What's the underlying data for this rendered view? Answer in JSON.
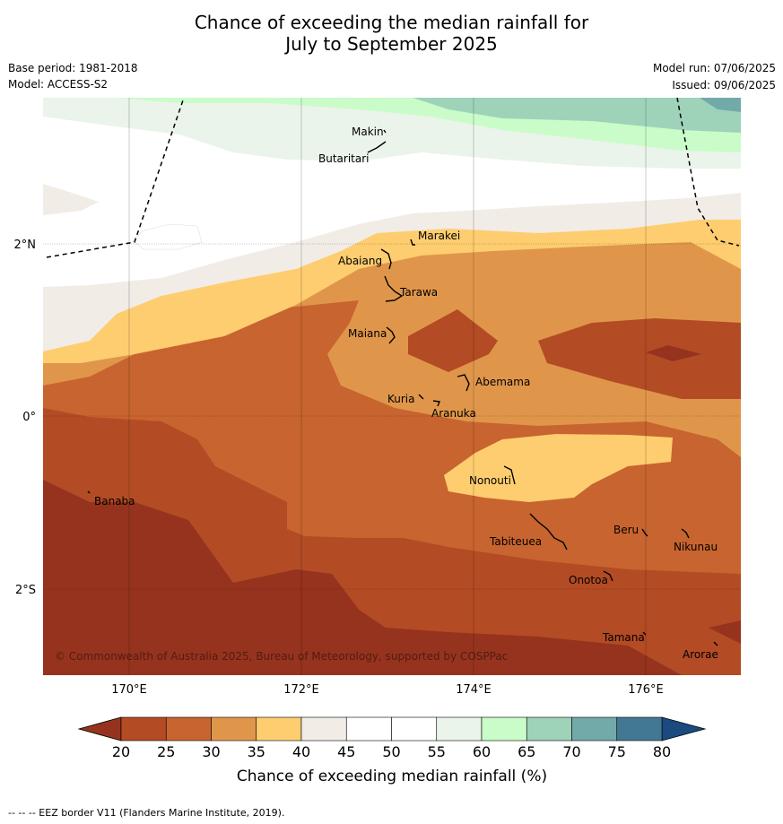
{
  "header": {
    "title_line1": "Chance of exceeding the median rainfall for",
    "title_line2": "July to September 2025",
    "base_period": "Base period: 1981-2018",
    "model": "Model: ACCESS-S2",
    "model_run": "Model run: 07/06/2025",
    "issued": "Issued: 09/06/2025"
  },
  "map": {
    "lat_labels": [
      "2°N",
      "0°",
      "2°S"
    ],
    "lon_labels": [
      "170°E",
      "172°E",
      "174°E",
      "176°E"
    ],
    "places": [
      {
        "name": "Makin"
      },
      {
        "name": "Butaritari"
      },
      {
        "name": "Marakei"
      },
      {
        "name": "Abaiang"
      },
      {
        "name": "Tarawa"
      },
      {
        "name": "Maiana"
      },
      {
        "name": "Abemama"
      },
      {
        "name": "Kuria"
      },
      {
        "name": "Aranuka"
      },
      {
        "name": "Nonouti"
      },
      {
        "name": "Banaba"
      },
      {
        "name": "Tabiteuea"
      },
      {
        "name": "Beru"
      },
      {
        "name": "Nikunau"
      },
      {
        "name": "Onotoa"
      },
      {
        "name": "Tamana"
      },
      {
        "name": "Arorae"
      }
    ],
    "copyright": "© Commonwealth of Australia 2025, Bureau of Meteorology, supported by COSPPac"
  },
  "colorbar": {
    "ticks": [
      "20",
      "25",
      "30",
      "35",
      "40",
      "45",
      "50",
      "55",
      "60",
      "65",
      "70",
      "75",
      "80"
    ],
    "colors": [
      "#b34b25",
      "#c8642f",
      "#e0964a",
      "#fdcd6f",
      "#f1ece6",
      "#ffffff",
      "#ffffff",
      "#eaf4ea",
      "#c9fcc9",
      "#9ed2b9",
      "#72a9a9",
      "#427894"
    ],
    "under_color": "#96331e",
    "over_color": "#1a4a80",
    "label": "Chance of exceeding median rainfall (%)"
  },
  "footer": "--  --  -- EEZ border V11 (Flanders Marine Institute, 2019)."
}
